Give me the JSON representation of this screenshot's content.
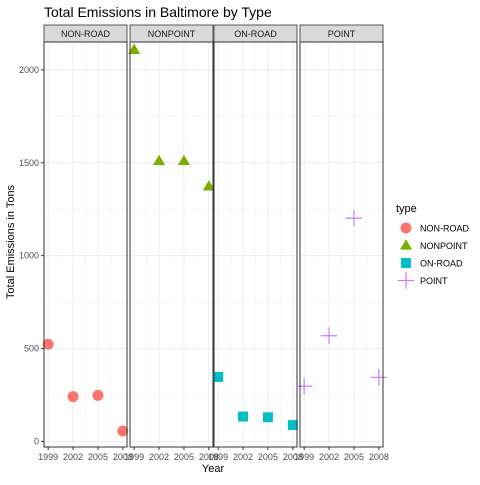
{
  "chart_data": {
    "type": "scatter",
    "title": "Total Emissions in Baltimore by Type",
    "xlabel": "Year",
    "ylabel": "Total Emissions in Tons",
    "x_ticks": [
      "1999",
      "2002",
      "2005",
      "2008"
    ],
    "y_ticks": [
      0,
      500,
      1000,
      1500,
      2000
    ],
    "ylim": [
      -30,
      2150
    ],
    "legend_title": "type",
    "legend_position": "right",
    "grid": true,
    "facets": [
      {
        "label": "NON-ROAD",
        "shape": "circle",
        "color": "#F8766D",
        "x": [
          1999,
          2002,
          2005,
          2008
        ],
        "y": [
          523,
          241,
          248,
          56
        ]
      },
      {
        "label": "NONPOINT",
        "shape": "triangle",
        "color": "#7CAE00",
        "x": [
          1999,
          2002,
          2005,
          2008
        ],
        "y": [
          2108,
          1510,
          1510,
          1373
        ]
      },
      {
        "label": "ON-ROAD",
        "shape": "square",
        "color": "#00BFC4",
        "x": [
          1999,
          2002,
          2005,
          2008
        ],
        "y": [
          347,
          134,
          130,
          88
        ]
      },
      {
        "label": "POINT",
        "shape": "cross",
        "color": "#C77CFF",
        "x": [
          1999,
          2002,
          2005,
          2008
        ],
        "y": [
          297,
          569,
          1202,
          345
        ]
      }
    ]
  }
}
